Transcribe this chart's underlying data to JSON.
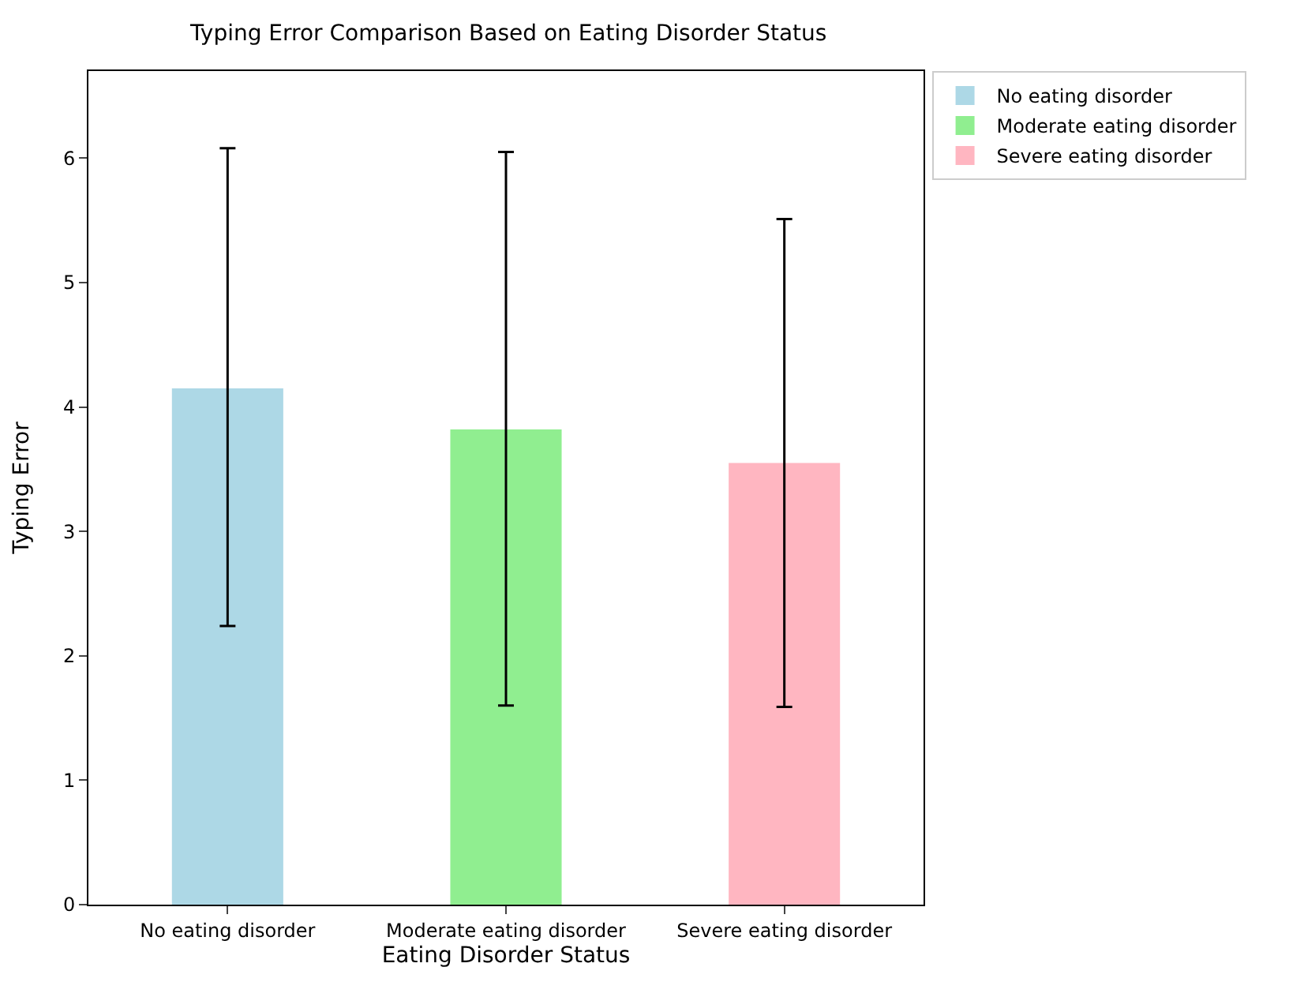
{
  "chart_data": {
    "type": "bar",
    "title": "Typing Error Comparison Based on Eating Disorder Status",
    "xlabel": "Eating Disorder Status",
    "ylabel": "Typing Error",
    "categories": [
      "No eating disorder",
      "Moderate eating disorder",
      "Severe eating disorder"
    ],
    "series": [
      {
        "name": "No eating disorder",
        "color": "#add8e6",
        "values": [
          4.15,
          null,
          null
        ],
        "errors": [
          [
            2.24,
            6.08
          ],
          null,
          null
        ]
      },
      {
        "name": "Moderate eating disorder",
        "color": "#90ee90",
        "values": [
          null,
          3.82,
          null
        ],
        "errors": [
          null,
          [
            1.6,
            6.05
          ],
          null
        ]
      },
      {
        "name": "Severe eating disorder",
        "color": "#ffb6c1",
        "values": [
          null,
          null,
          3.55
        ],
        "errors": [
          null,
          null,
          [
            1.59,
            5.51
          ]
        ]
      }
    ],
    "ylim": [
      0,
      6.7
    ],
    "yticks": [
      0,
      1,
      2,
      3,
      4,
      5,
      6
    ],
    "grid": false,
    "legend": "top right"
  }
}
